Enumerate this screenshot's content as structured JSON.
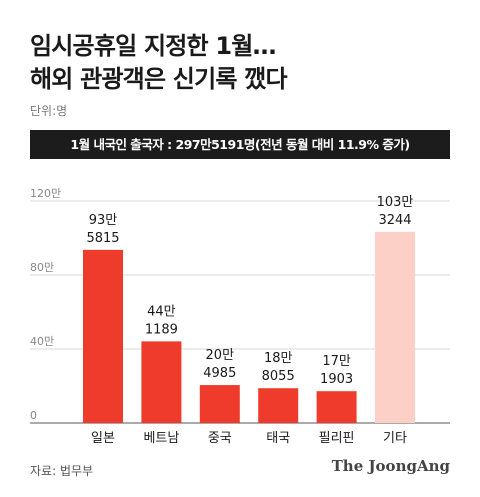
{
  "header": {
    "title_line1": "임시공휴일 지정한 1월…",
    "title_line2": "해외 관광객은 신기록 깼다",
    "unit": "단위:명"
  },
  "banner": {
    "text": "1월 내국인 출국자 : 297만5191명(전년 동월 대비 11.9% 증가)"
  },
  "chart_data": {
    "type": "bar",
    "categories": [
      "일본",
      "베트남",
      "중국",
      "태국",
      "필리핀",
      "기타"
    ],
    "values": [
      935815,
      441189,
      204985,
      188055,
      171903,
      1033244
    ],
    "bar_labels": [
      [
        "93만",
        "5815"
      ],
      [
        "44만",
        "1189"
      ],
      [
        "20만",
        "4985"
      ],
      [
        "18만",
        "8055"
      ],
      [
        "17만",
        "1903"
      ],
      [
        "103만",
        "3244"
      ]
    ],
    "colors": [
      "#ef3b2c",
      "#ef3b2c",
      "#ef3b2c",
      "#ef3b2c",
      "#ef3b2c",
      "#fcd0c6"
    ],
    "yticks": [
      0,
      400000,
      800000,
      1200000
    ],
    "ytick_labels": [
      "0",
      "40만",
      "80만",
      "120만"
    ],
    "ylim": [
      0,
      1200000
    ],
    "grid": true
  },
  "footer": {
    "source": "자료: 법무부",
    "logo": "The JoongAng"
  }
}
